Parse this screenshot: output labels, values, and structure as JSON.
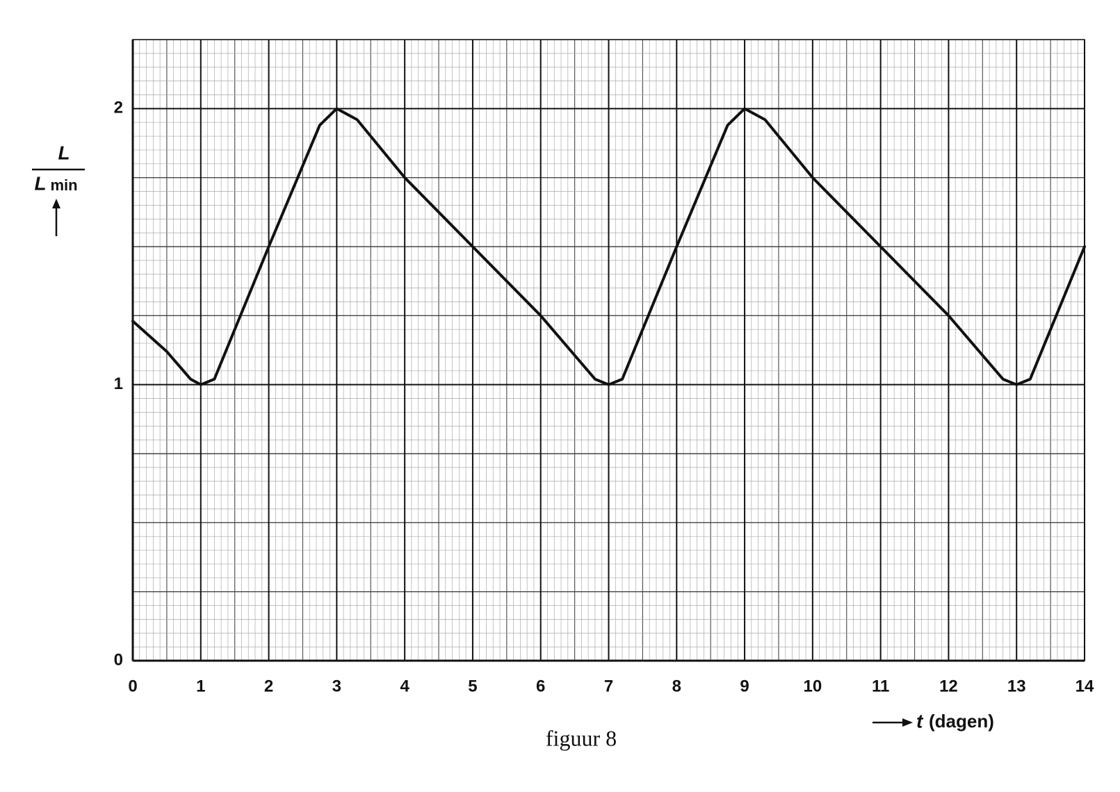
{
  "chart_data": {
    "type": "line",
    "y_label_numerator": "L",
    "y_label_denominator": "L",
    "y_label_subscript": "min",
    "x_label_symbol": "t",
    "x_label_unit": "(dagen)",
    "caption": "figuur 8",
    "series": [
      {
        "color": "#111111",
        "x": [
          0,
          0.5,
          0.85,
          1,
          1.2,
          2,
          2.75,
          3,
          3.3,
          4,
          5,
          6,
          6.8,
          7,
          7.2,
          8,
          8.75,
          9,
          9.3,
          10,
          11,
          12,
          12.8,
          13,
          13.2,
          14
        ],
        "values": [
          1.23,
          1.12,
          1.02,
          1.0,
          1.02,
          1.5,
          1.94,
          2.0,
          1.96,
          1.75,
          1.5,
          1.25,
          1.02,
          1.0,
          1.02,
          1.5,
          1.94,
          2.0,
          1.96,
          1.75,
          1.5,
          1.25,
          1.02,
          1.0,
          1.02,
          1.5
        ]
      }
    ],
    "xlim": [
      0,
      14
    ],
    "ylim": [
      0,
      2.25
    ],
    "xticks": [
      0,
      1,
      2,
      3,
      4,
      5,
      6,
      7,
      8,
      9,
      10,
      11,
      12,
      13,
      14
    ],
    "yticks": [
      0,
      1,
      2
    ],
    "grid": true
  }
}
